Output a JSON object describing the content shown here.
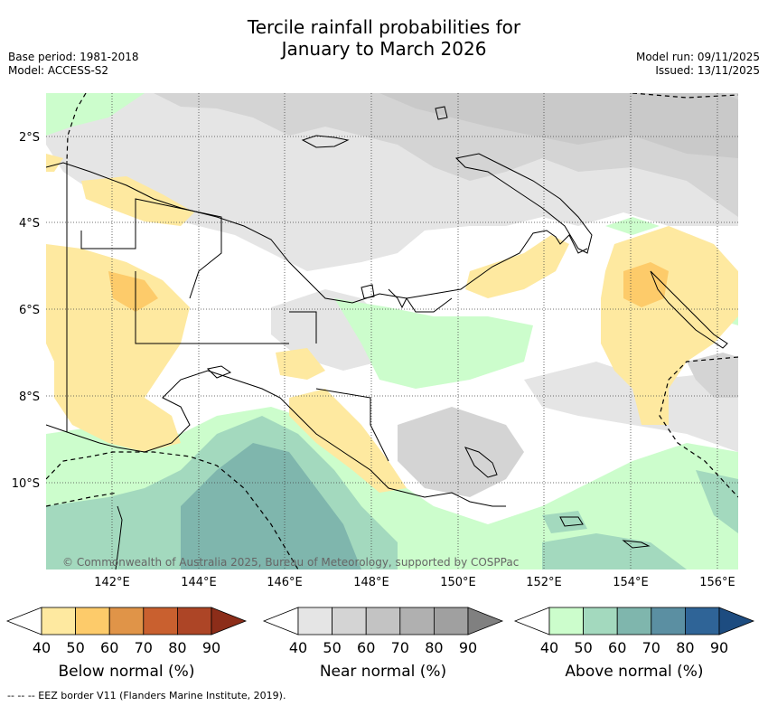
{
  "title_line1": "Tercile rainfall probabilities for",
  "title_line2": "January to March 2026",
  "base_period": "Base period: 1981-2018",
  "model": "Model: ACCESS-S2",
  "model_run": "Model run: 09/11/2025",
  "issued": "Issued: 13/11/2025",
  "copyright": "© Commonwealth of Australia 2025, Bureau of Meteorology, supported by COSPPac",
  "footnote": "--  --  -- EEZ border V11 (Flanders Marine Institute, 2019).",
  "lon_labels": [
    "142°E",
    "144°E",
    "146°E",
    "148°E",
    "150°E",
    "152°E",
    "154°E",
    "156°E"
  ],
  "lat_labels": [
    "2°S",
    "4°S",
    "6°S",
    "8°S",
    "10°S"
  ],
  "colorbars": [
    {
      "label": "Below normal (%)",
      "ticks": [
        "40",
        "50",
        "60",
        "70",
        "80",
        "90"
      ],
      "colors": [
        "#ffffff",
        "#fee9a0",
        "#fdcb6a",
        "#e09448",
        "#c9602f",
        "#ad4526",
        "#8c2d19"
      ]
    },
    {
      "label": "Near normal (%)",
      "ticks": [
        "40",
        "50",
        "60",
        "70",
        "80",
        "90"
      ],
      "colors": [
        "#ffffff",
        "#e5e5e5",
        "#d4d4d4",
        "#c3c3c3",
        "#b0b0b0",
        "#a0a0a0",
        "#808080"
      ]
    },
    {
      "label": "Above normal (%)",
      "ticks": [
        "40",
        "50",
        "60",
        "70",
        "80",
        "90"
      ],
      "colors": [
        "#ffffff",
        "#ccfdcc",
        "#a3d9be",
        "#7fb6ad",
        "#5b8fa2",
        "#2f6497",
        "#1d4c80"
      ]
    }
  ]
}
